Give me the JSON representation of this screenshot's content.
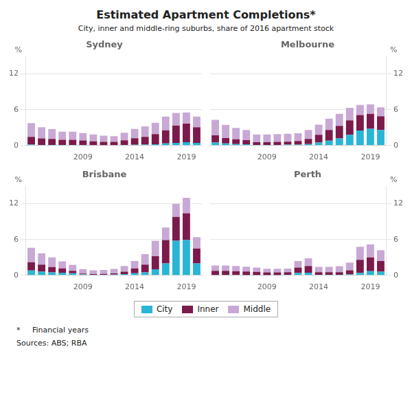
{
  "title": "Estimated Apartment Completions*",
  "subtitle": "City, inner and middle-ring suburbs, share of 2016 apartment stock",
  "annotations": [
    "*     Financial years",
    "Sources: ABS; RBA"
  ],
  "chart_data": [
    {
      "type": "bar",
      "title": "Sydney",
      "y_label": "%",
      "stacked": true,
      "grid": true,
      "categories": [
        null,
        null,
        null,
        null,
        null,
        "2009",
        null,
        null,
        null,
        null,
        "2014",
        null,
        null,
        null,
        null,
        "2019",
        null
      ],
      "ylim": [
        0,
        15
      ],
      "yticks": [
        0,
        6,
        12
      ],
      "series": [
        {
          "name": "City",
          "color": "#29B5D5",
          "values": [
            0.15,
            0.1,
            0.1,
            0.1,
            0.1,
            0.08,
            0.05,
            0.05,
            0.05,
            0.08,
            0.12,
            0.15,
            0.2,
            0.35,
            0.45,
            0.55,
            0.45
          ]
        },
        {
          "name": "Inner",
          "color": "#7B1A4B",
          "values": [
            1.3,
            1.1,
            1.0,
            0.85,
            0.85,
            0.75,
            0.65,
            0.55,
            0.55,
            0.8,
            1.1,
            1.3,
            1.7,
            2.2,
            2.9,
            3.1,
            2.6
          ]
        },
        {
          "name": "Middle",
          "color": "#C8A8D5",
          "values": [
            2.3,
            1.85,
            1.65,
            1.35,
            1.35,
            1.25,
            1.15,
            1.05,
            0.95,
            1.25,
            1.55,
            1.75,
            1.9,
            2.3,
            2.1,
            1.9,
            1.8
          ]
        }
      ]
    },
    {
      "type": "bar",
      "title": "Melbourne",
      "y_label": "%",
      "stacked": true,
      "grid": true,
      "categories": [
        null,
        null,
        null,
        null,
        null,
        "2009",
        null,
        null,
        null,
        null,
        "2014",
        null,
        null,
        null,
        null,
        "2019",
        null
      ],
      "ylim": [
        0,
        15
      ],
      "yticks": [
        0,
        6,
        12
      ],
      "series": [
        {
          "name": "City",
          "color": "#29B5D5",
          "values": [
            0.5,
            0.35,
            0.25,
            0.2,
            0.1,
            0.1,
            0.1,
            0.15,
            0.15,
            0.25,
            0.5,
            0.8,
            1.2,
            1.8,
            2.5,
            2.8,
            2.6
          ]
        },
        {
          "name": "Inner",
          "color": "#7B1A4B",
          "values": [
            1.2,
            0.9,
            0.8,
            0.7,
            0.45,
            0.45,
            0.5,
            0.5,
            0.6,
            0.85,
            1.3,
            1.8,
            2.1,
            2.4,
            2.6,
            2.5,
            2.3
          ]
        },
        {
          "name": "Middle",
          "color": "#C8A8D5",
          "values": [
            2.6,
            2.2,
            1.9,
            1.7,
            1.3,
            1.3,
            1.3,
            1.3,
            1.3,
            1.5,
            1.7,
            1.9,
            2.0,
            2.1,
            1.7,
            1.6,
            1.5
          ]
        }
      ]
    },
    {
      "type": "bar",
      "title": "Brisbane",
      "y_label": "%",
      "stacked": true,
      "grid": true,
      "categories": [
        null,
        null,
        null,
        null,
        null,
        "2009",
        null,
        null,
        null,
        null,
        "2014",
        null,
        null,
        null,
        null,
        "2019",
        null
      ],
      "ylim": [
        0,
        15
      ],
      "yticks": [
        0,
        6,
        12
      ],
      "series": [
        {
          "name": "City",
          "color": "#29B5D5",
          "values": [
            0.8,
            0.6,
            0.5,
            0.45,
            0.35,
            0.15,
            0.1,
            0.1,
            0.12,
            0.2,
            0.35,
            0.5,
            1.0,
            2.0,
            5.8,
            5.9,
            2.0
          ]
        },
        {
          "name": "Inner",
          "color": "#7B1A4B",
          "values": [
            1.4,
            1.2,
            0.9,
            0.7,
            0.4,
            0.15,
            0.1,
            0.15,
            0.2,
            0.4,
            0.8,
            1.3,
            2.2,
            3.9,
            4.0,
            4.5,
            2.5
          ]
        },
        {
          "name": "Middle",
          "color": "#C8A8D5",
          "values": [
            2.4,
            1.9,
            1.6,
            1.2,
            1.0,
            0.75,
            0.65,
            0.65,
            0.75,
            0.95,
            1.25,
            1.75,
            2.6,
            2.1,
            2.2,
            2.6,
            1.9
          ]
        }
      ]
    },
    {
      "type": "bar",
      "title": "Perth",
      "y_label": "%",
      "stacked": true,
      "grid": true,
      "categories": [
        null,
        null,
        null,
        null,
        null,
        "2009",
        null,
        null,
        null,
        null,
        "2014",
        null,
        null,
        null,
        null,
        "2019",
        null
      ],
      "ylim": [
        0,
        15
      ],
      "yticks": [
        0,
        6,
        12
      ],
      "series": [
        {
          "name": "City",
          "color": "#29B5D5",
          "values": [
            0.05,
            0.05,
            0.05,
            0.04,
            0.04,
            0.04,
            0.04,
            0.08,
            0.4,
            0.45,
            0.08,
            0.08,
            0.08,
            0.15,
            0.4,
            0.7,
            0.6
          ]
        },
        {
          "name": "Inner",
          "color": "#7B1A4B",
          "values": [
            0.7,
            0.7,
            0.65,
            0.6,
            0.55,
            0.45,
            0.45,
            0.45,
            0.9,
            1.1,
            0.45,
            0.45,
            0.45,
            0.7,
            2.2,
            2.3,
            1.8
          ]
        },
        {
          "name": "Middle",
          "color": "#C8A8D5",
          "values": [
            0.9,
            0.9,
            0.85,
            0.8,
            0.7,
            0.6,
            0.6,
            0.6,
            1.1,
            1.3,
            0.9,
            0.9,
            1.0,
            1.3,
            2.2,
            2.2,
            1.8
          ]
        }
      ]
    }
  ]
}
